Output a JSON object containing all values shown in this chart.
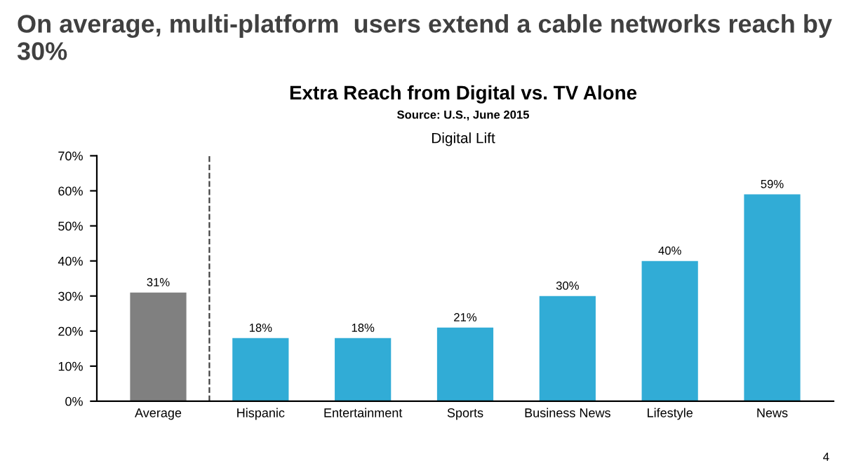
{
  "chart_data": {
    "type": "bar",
    "title": "On average, multi-platform  users extend a cable networks reach by 30%",
    "subtitle": "Extra Reach from Digital vs. TV Alone",
    "annotations": [
      "Source: U.S., June 2015",
      "Digital Lift",
      "4"
    ],
    "categories": [
      "Average",
      "Hispanic",
      "Entertainment",
      "Sports",
      "Business News",
      "Lifestyle",
      "News"
    ],
    "values": [
      31,
      18,
      18,
      21,
      30,
      40,
      59
    ],
    "colors": [
      "#808080",
      "#31acd6",
      "#31acd6",
      "#31acd6",
      "#31acd6",
      "#31acd6",
      "#31acd6"
    ],
    "value_labels": [
      "31%",
      "18%",
      "18%",
      "21%",
      "30%",
      "40%",
      "59%"
    ],
    "ylim": [
      0,
      70
    ],
    "yticks": [
      {
        "value": 0,
        "label": "0%"
      },
      {
        "value": 10,
        "label": "10%"
      },
      {
        "value": 20,
        "label": "20%"
      },
      {
        "value": 30,
        "label": "30%"
      },
      {
        "value": 40,
        "label": "40%"
      },
      {
        "value": 50,
        "label": "50%"
      },
      {
        "value": 60,
        "label": "60%"
      },
      {
        "value": 70,
        "label": "70%"
      }
    ],
    "grid": false
  }
}
